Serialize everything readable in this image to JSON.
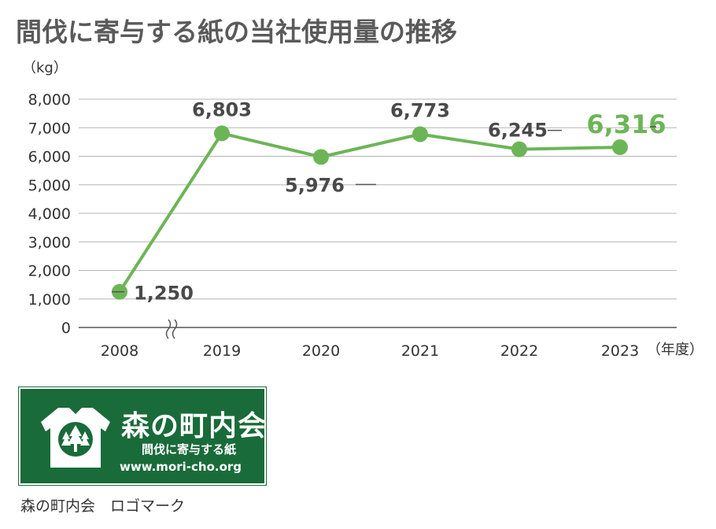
{
  "chart_data": {
    "type": "line",
    "title": "間伐に寄与する紙の当社使用量の推移",
    "ylabel": "（kg）",
    "xlabel": "（年度）",
    "categories": [
      "2008",
      "2019",
      "2020",
      "2021",
      "2022",
      "2023"
    ],
    "series": [
      {
        "values": [
          1250,
          6803,
          5976,
          6773,
          6245,
          6316
        ]
      }
    ],
    "data_labels": [
      "1,250",
      "6,803",
      "5,976",
      "6,773",
      "6,245",
      "6,316"
    ],
    "highlight_index": 5,
    "ylim": [
      0,
      8000
    ],
    "yticks": [
      0,
      1000,
      2000,
      3000,
      4000,
      5000,
      6000,
      7000,
      8000
    ],
    "ytick_labels": [
      "0",
      "1,000",
      "2,000",
      "3,000",
      "4,000",
      "5,000",
      "6,000",
      "7,000",
      "8,000"
    ],
    "axis_break": "between 2008 and 2019",
    "grid": true,
    "line_color": "#6cb557",
    "highlight_color": "#6cb557"
  },
  "logo": {
    "name": "森の町内会",
    "tagline": "間伐に寄与する紙",
    "url": "www.mori-cho.org",
    "background_color": "#1a6b3a",
    "emblem_icon": "tree-shirt-icon",
    "caption": "森の町内会　ロゴマーク"
  }
}
